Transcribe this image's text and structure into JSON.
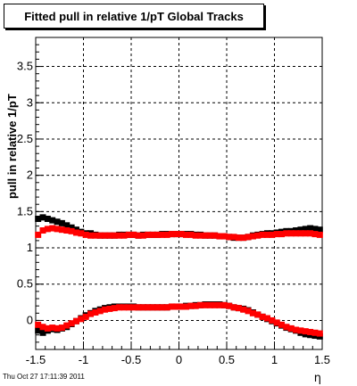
{
  "title": "Fitted pull in relative 1/pT  Global Tracks",
  "timestamp": "Thu Oct 27 17:11:39 2011",
  "chart_data": {
    "type": "scatter",
    "title": "Fitted pull in relative 1/pT  Global Tracks",
    "xlabel": "η",
    "ylabel": "pull in relative 1/pT",
    "xlim": [
      -1.5,
      1.5
    ],
    "ylim": [
      -0.4,
      3.9
    ],
    "grid": true,
    "x_ticks": [
      "-1.5",
      "-1",
      "-0.5",
      "0",
      "0.5",
      "1",
      "1.5"
    ],
    "y_ticks": [
      "0",
      "0.5",
      "1",
      "1.5",
      "2",
      "2.5",
      "3",
      "3.5"
    ],
    "colors": {
      "black": "#000000",
      "red": "#ff0000"
    },
    "series": [
      {
        "color": "#000000",
        "marker": "square",
        "x": [
          -1.475,
          -1.425,
          -1.375,
          -1.325,
          -1.275,
          -1.225,
          -1.175,
          -1.125,
          -1.075,
          -1.025,
          -0.975,
          -0.925,
          -0.875,
          -0.825,
          -0.775,
          -0.725,
          -0.675,
          -0.625,
          -0.575,
          -0.525,
          -0.475,
          -0.425,
          -0.375,
          -0.325,
          -0.275,
          -0.225,
          -0.175,
          -0.125,
          -0.075,
          -0.025,
          0.025,
          0.075,
          0.125,
          0.175,
          0.225,
          0.275,
          0.325,
          0.375,
          0.425,
          0.475,
          0.525,
          0.575,
          0.625,
          0.675,
          0.725,
          0.775,
          0.825,
          0.875,
          0.925,
          0.975,
          1.025,
          1.075,
          1.125,
          1.175,
          1.225,
          1.275,
          1.325,
          1.375,
          1.425,
          1.475
        ],
        "y": [
          1.4,
          1.42,
          1.4,
          1.38,
          1.36,
          1.34,
          1.31,
          1.28,
          1.25,
          1.22,
          1.2,
          1.2,
          1.18,
          1.17,
          1.17,
          1.17,
          1.17,
          1.18,
          1.18,
          1.18,
          1.18,
          1.17,
          1.18,
          1.18,
          1.18,
          1.18,
          1.19,
          1.19,
          1.19,
          1.19,
          1.19,
          1.19,
          1.19,
          1.18,
          1.18,
          1.17,
          1.17,
          1.17,
          1.16,
          1.16,
          1.15,
          1.14,
          1.14,
          1.14,
          1.15,
          1.17,
          1.18,
          1.19,
          1.2,
          1.2,
          1.21,
          1.22,
          1.23,
          1.23,
          1.24,
          1.25,
          1.26,
          1.27,
          1.26,
          1.25
        ]
      },
      {
        "color": "#ff0000",
        "marker": "square",
        "x": [
          -1.475,
          -1.425,
          -1.375,
          -1.325,
          -1.275,
          -1.225,
          -1.175,
          -1.125,
          -1.075,
          -1.025,
          -0.975,
          -0.925,
          -0.875,
          -0.825,
          -0.775,
          -0.725,
          -0.675,
          -0.625,
          -0.575,
          -0.525,
          -0.475,
          -0.425,
          -0.375,
          -0.325,
          -0.275,
          -0.225,
          -0.175,
          -0.125,
          -0.075,
          -0.025,
          0.025,
          0.075,
          0.125,
          0.175,
          0.225,
          0.275,
          0.325,
          0.375,
          0.425,
          0.475,
          0.525,
          0.575,
          0.625,
          0.675,
          0.725,
          0.775,
          0.825,
          0.875,
          0.925,
          0.975,
          1.025,
          1.075,
          1.125,
          1.175,
          1.225,
          1.275,
          1.325,
          1.375,
          1.425,
          1.475
        ],
        "y": [
          1.18,
          1.24,
          1.26,
          1.27,
          1.26,
          1.25,
          1.24,
          1.23,
          1.21,
          1.2,
          1.18,
          1.17,
          1.17,
          1.17,
          1.17,
          1.17,
          1.17,
          1.17,
          1.17,
          1.18,
          1.18,
          1.17,
          1.17,
          1.18,
          1.18,
          1.18,
          1.18,
          1.18,
          1.19,
          1.19,
          1.19,
          1.18,
          1.18,
          1.17,
          1.17,
          1.17,
          1.17,
          1.17,
          1.16,
          1.16,
          1.15,
          1.15,
          1.14,
          1.14,
          1.15,
          1.16,
          1.17,
          1.18,
          1.18,
          1.18,
          1.19,
          1.19,
          1.2,
          1.2,
          1.2,
          1.2,
          1.2,
          1.2,
          1.19,
          1.18
        ]
      },
      {
        "color": "#000000",
        "marker": "square",
        "x": [
          -1.475,
          -1.425,
          -1.375,
          -1.325,
          -1.275,
          -1.225,
          -1.175,
          -1.125,
          -1.075,
          -1.025,
          -0.975,
          -0.925,
          -0.875,
          -0.825,
          -0.775,
          -0.725,
          -0.675,
          -0.625,
          -0.575,
          -0.525,
          -0.475,
          -0.425,
          -0.375,
          -0.325,
          -0.275,
          -0.225,
          -0.175,
          -0.125,
          -0.075,
          -0.025,
          0.025,
          0.075,
          0.125,
          0.175,
          0.225,
          0.275,
          0.325,
          0.375,
          0.425,
          0.475,
          0.525,
          0.575,
          0.625,
          0.675,
          0.725,
          0.775,
          0.825,
          0.875,
          0.925,
          0.975,
          1.025,
          1.075,
          1.125,
          1.175,
          1.225,
          1.275,
          1.325,
          1.375,
          1.425,
          1.475
        ],
        "y": [
          -0.14,
          -0.17,
          -0.14,
          -0.12,
          -0.13,
          -0.11,
          -0.09,
          -0.05,
          -0.01,
          0.03,
          0.07,
          0.1,
          0.13,
          0.15,
          0.17,
          0.18,
          0.19,
          0.19,
          0.19,
          0.19,
          0.19,
          0.18,
          0.18,
          0.18,
          0.18,
          0.18,
          0.18,
          0.18,
          0.19,
          0.19,
          0.19,
          0.2,
          0.2,
          0.21,
          0.21,
          0.22,
          0.22,
          0.22,
          0.22,
          0.21,
          0.2,
          0.18,
          0.17,
          0.16,
          0.14,
          0.11,
          0.08,
          0.05,
          0.02,
          -0.01,
          -0.04,
          -0.07,
          -0.1,
          -0.12,
          -0.14,
          -0.17,
          -0.19,
          -0.2,
          -0.21,
          -0.22
        ]
      },
      {
        "color": "#ff0000",
        "marker": "square",
        "x": [
          -1.475,
          -1.425,
          -1.375,
          -1.325,
          -1.275,
          -1.225,
          -1.175,
          -1.125,
          -1.075,
          -1.025,
          -0.975,
          -0.925,
          -0.875,
          -0.825,
          -0.775,
          -0.725,
          -0.675,
          -0.625,
          -0.575,
          -0.525,
          -0.475,
          -0.425,
          -0.375,
          -0.325,
          -0.275,
          -0.225,
          -0.175,
          -0.125,
          -0.075,
          -0.025,
          0.025,
          0.075,
          0.125,
          0.175,
          0.225,
          0.275,
          0.325,
          0.375,
          0.425,
          0.475,
          0.525,
          0.575,
          0.625,
          0.675,
          0.725,
          0.775,
          0.825,
          0.875,
          0.925,
          0.975,
          1.025,
          1.075,
          1.125,
          1.175,
          1.225,
          1.275,
          1.325,
          1.375,
          1.425,
          1.475
        ],
        "y": [
          -0.06,
          -0.09,
          -0.11,
          -0.1,
          -0.11,
          -0.1,
          -0.07,
          -0.04,
          -0.01,
          0.02,
          0.05,
          0.09,
          0.11,
          0.13,
          0.15,
          0.16,
          0.17,
          0.18,
          0.18,
          0.18,
          0.18,
          0.18,
          0.18,
          0.18,
          0.18,
          0.18,
          0.18,
          0.18,
          0.19,
          0.19,
          0.19,
          0.19,
          0.2,
          0.2,
          0.21,
          0.21,
          0.21,
          0.21,
          0.21,
          0.21,
          0.2,
          0.18,
          0.17,
          0.15,
          0.13,
          0.1,
          0.08,
          0.05,
          0.03,
          0.0,
          -0.03,
          -0.06,
          -0.09,
          -0.11,
          -0.13,
          -0.14,
          -0.15,
          -0.16,
          -0.17,
          -0.18
        ]
      }
    ]
  }
}
